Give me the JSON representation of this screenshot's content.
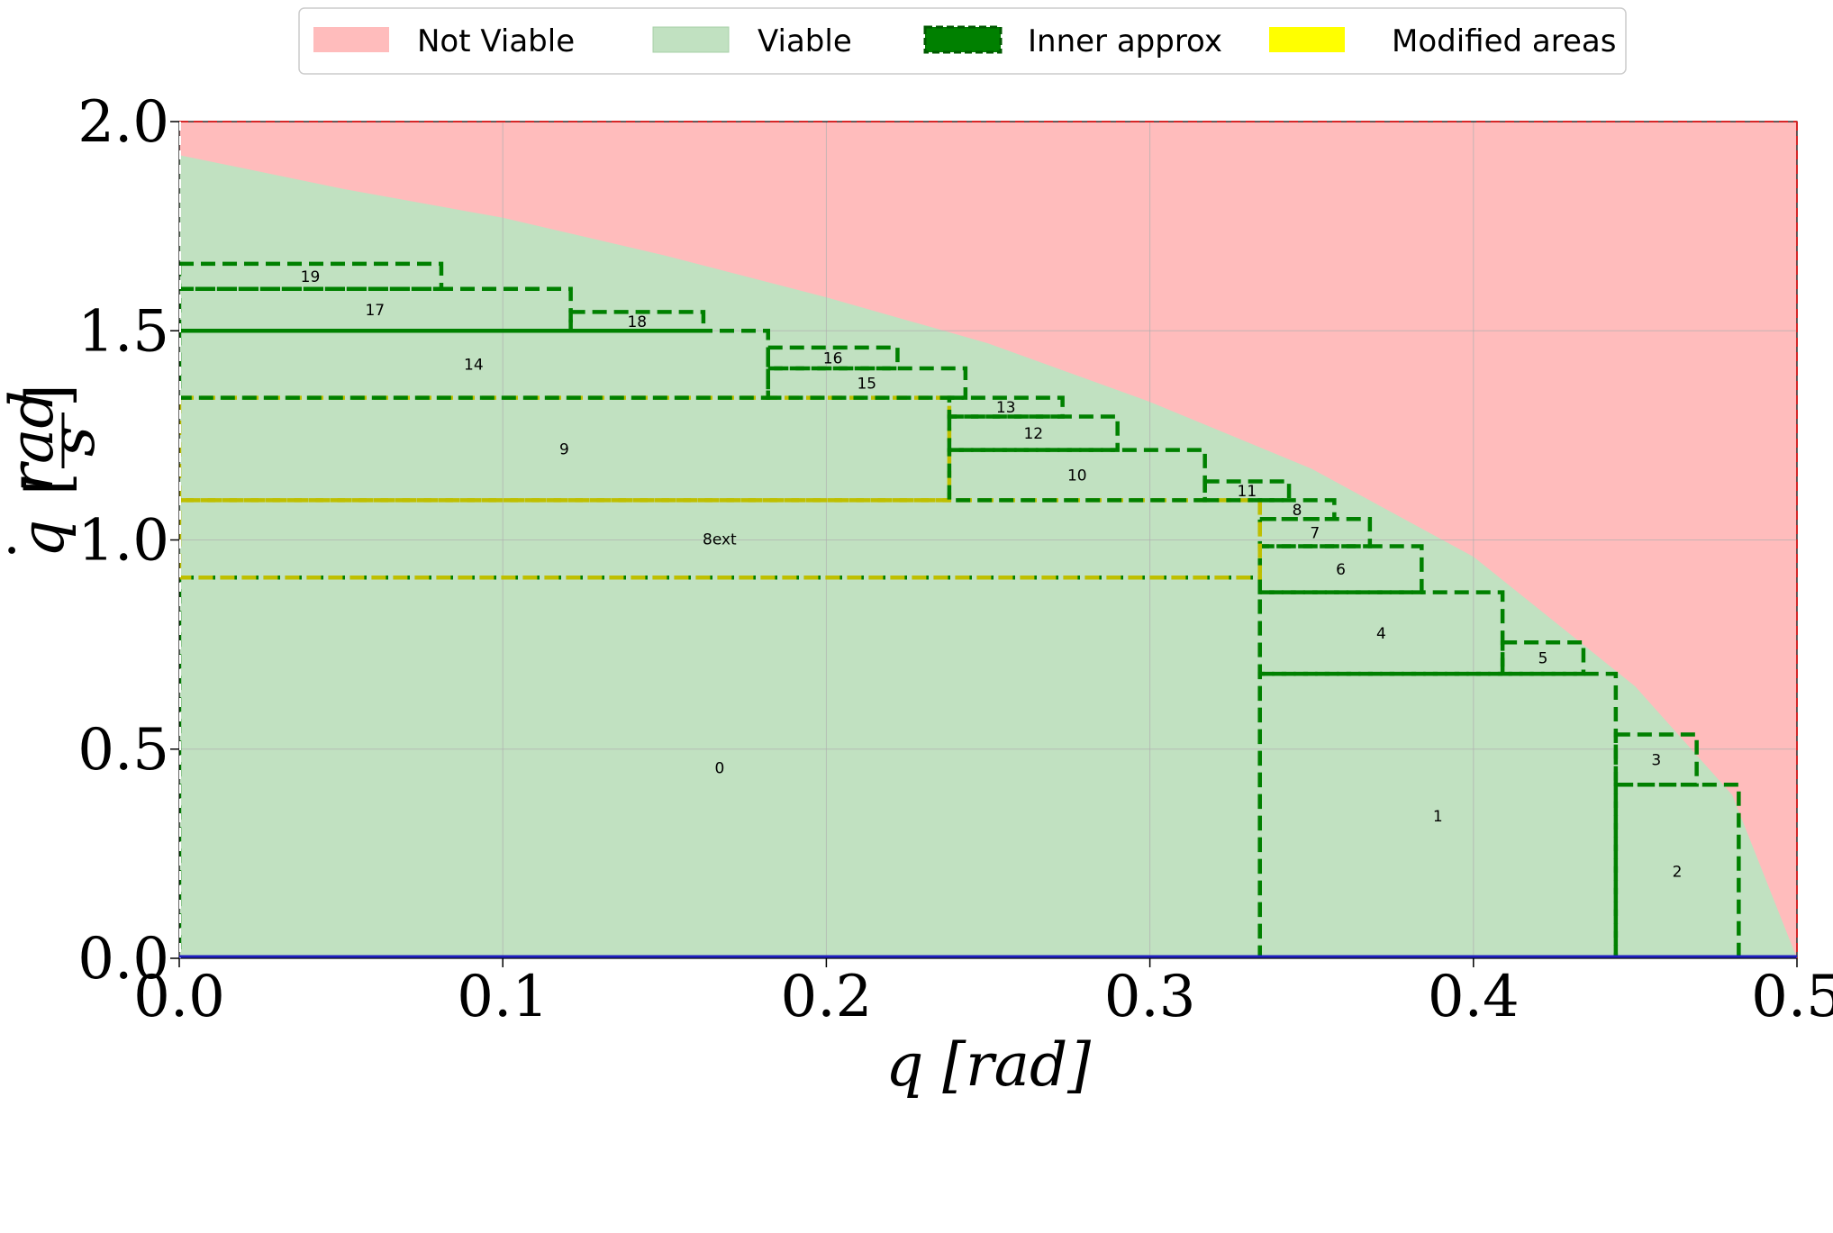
{
  "chart_data": {
    "type": "area",
    "xlabel": "q [rad]",
    "ylabel_symbol": "q",
    "ylabel_units_num": "rad",
    "ylabel_units_den": "s",
    "xlim": [
      0.0,
      0.5
    ],
    "ylim": [
      0.0,
      2.0
    ],
    "xticks": [
      0.0,
      0.1,
      0.2,
      0.3,
      0.4,
      0.5
    ],
    "xtick_labels": [
      "0.0",
      "0.1",
      "0.2",
      "0.3",
      "0.4",
      "0.5"
    ],
    "yticks": [
      0.0,
      0.5,
      1.0,
      1.5,
      2.0
    ],
    "ytick_labels": [
      "0.0",
      "0.5",
      "1.0",
      "1.5",
      "2.0"
    ],
    "grid": true,
    "legend_position": "top-center",
    "legend": [
      {
        "label": "Not Viable",
        "type": "patch",
        "color": "#ffbcbc"
      },
      {
        "label": "Viable",
        "type": "patch",
        "color": "#c1e1c1"
      },
      {
        "label": "Inner approx",
        "type": "dashed-box",
        "color": "#008000"
      },
      {
        "label": "Modified areas",
        "type": "patch",
        "color": "#ffff00"
      }
    ],
    "viability_boundary": {
      "q": [
        0.0,
        0.05,
        0.1,
        0.15,
        0.2,
        0.25,
        0.3,
        0.35,
        0.4,
        0.45,
        0.48,
        0.5
      ],
      "qdot": [
        1.92,
        1.84,
        1.77,
        1.68,
        1.58,
        1.47,
        1.33,
        1.17,
        0.96,
        0.65,
        0.39,
        0.0
      ]
    },
    "boxes": [
      {
        "label": "0",
        "q": [
          0.0,
          0.334
        ],
        "qdot": [
          0.0,
          0.91
        ],
        "modified": false
      },
      {
        "label": "1",
        "q": [
          0.334,
          0.444
        ],
        "qdot": [
          0.0,
          0.68
        ],
        "modified": false
      },
      {
        "label": "2",
        "q": [
          0.444,
          0.482
        ],
        "qdot": [
          0.0,
          0.415
        ],
        "modified": false
      },
      {
        "label": "3",
        "q": [
          0.444,
          0.469
        ],
        "qdot": [
          0.415,
          0.535
        ],
        "modified": false
      },
      {
        "label": "4",
        "q": [
          0.334,
          0.409
        ],
        "qdot": [
          0.68,
          0.875
        ],
        "modified": false
      },
      {
        "label": "5",
        "q": [
          0.409,
          0.434
        ],
        "qdot": [
          0.68,
          0.755
        ],
        "modified": false
      },
      {
        "label": "6",
        "q": [
          0.334,
          0.384
        ],
        "qdot": [
          0.875,
          0.985
        ],
        "modified": false
      },
      {
        "label": "7",
        "q": [
          0.334,
          0.368
        ],
        "qdot": [
          0.985,
          1.05
        ],
        "modified": false
      },
      {
        "label": "8",
        "q": [
          0.334,
          0.357
        ],
        "qdot": [
          1.05,
          1.095
        ],
        "modified": false
      },
      {
        "label": "8ext",
        "q": [
          0.0,
          0.334
        ],
        "qdot": [
          0.91,
          1.095
        ],
        "modified": true
      },
      {
        "label": "9",
        "q": [
          0.0,
          0.238
        ],
        "qdot": [
          1.095,
          1.34
        ],
        "modified": true
      },
      {
        "label": "10",
        "q": [
          0.238,
          0.317
        ],
        "qdot": [
          1.095,
          1.215
        ],
        "modified": false
      },
      {
        "label": "11",
        "q": [
          0.317,
          0.343
        ],
        "qdot": [
          1.095,
          1.14
        ],
        "modified": false
      },
      {
        "label": "12",
        "q": [
          0.238,
          0.29
        ],
        "qdot": [
          1.215,
          1.295
        ],
        "modified": false
      },
      {
        "label": "13",
        "q": [
          0.238,
          0.273
        ],
        "qdot": [
          1.295,
          1.34
        ],
        "modified": false
      },
      {
        "label": "14",
        "q": [
          0.0,
          0.182
        ],
        "qdot": [
          1.34,
          1.5
        ],
        "modified": false
      },
      {
        "label": "15",
        "q": [
          0.182,
          0.243
        ],
        "qdot": [
          1.34,
          1.41
        ],
        "modified": false
      },
      {
        "label": "16",
        "q": [
          0.182,
          0.222
        ],
        "qdot": [
          1.41,
          1.46
        ],
        "modified": false
      },
      {
        "label": "17",
        "q": [
          0.0,
          0.121
        ],
        "qdot": [
          1.5,
          1.6
        ],
        "modified": false
      },
      {
        "label": "18",
        "q": [
          0.121,
          0.162
        ],
        "qdot": [
          1.5,
          1.545
        ],
        "modified": false
      },
      {
        "label": "19",
        "q": [
          0.0,
          0.081
        ],
        "qdot": [
          1.6,
          1.66
        ],
        "modified": false
      }
    ]
  }
}
